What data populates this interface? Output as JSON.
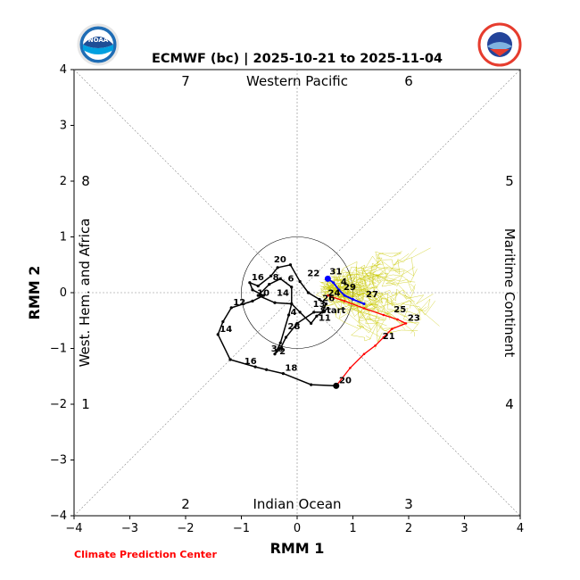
{
  "chart_data": {
    "type": "line",
    "title": "ECMWF (bc) | 2025-10-21 to 2025-11-04",
    "xlabel": "RMM 1",
    "ylabel": "RMM 2",
    "xlim": [
      -4,
      4
    ],
    "ylim": [
      -4,
      4
    ],
    "ticks": [
      "−4",
      "−3",
      "−2",
      "−1",
      "0",
      "1",
      "2",
      "3",
      "4"
    ],
    "credit": "Climate Prediction Center",
    "regions": {
      "top": "Western Pacific",
      "bottom": "Indian Ocean",
      "left": "West. Hem. and Africa",
      "right": "Maritime Continent"
    },
    "phases": [
      "1",
      "2",
      "3",
      "4",
      "5",
      "6",
      "7",
      "8"
    ],
    "colors": {
      "observed": "#000000",
      "forecast_week1": "#ff0000",
      "forecast_week2": "#0000ff",
      "ensemble": "#c8c800",
      "credit": "#ff0000"
    },
    "observed_series": {
      "points": [
        [
          0.7,
          -1.67
        ],
        [
          0.25,
          -1.65
        ],
        [
          -0.25,
          -1.45
        ],
        [
          -0.55,
          -1.38
        ],
        [
          -0.75,
          -1.33
        ],
        [
          -1.2,
          -1.2
        ],
        [
          -1.42,
          -0.75
        ],
        [
          -1.33,
          -0.52
        ],
        [
          -1.18,
          -0.27
        ],
        [
          -0.8,
          -0.15
        ],
        [
          -0.6,
          -0.05
        ],
        [
          -0.8,
          0.05
        ],
        [
          -0.85,
          0.18
        ],
        [
          -0.7,
          0.12
        ],
        [
          -0.47,
          0.3
        ],
        [
          -0.35,
          0.45
        ],
        [
          -0.12,
          0.5
        ],
        [
          0.05,
          0.2
        ],
        [
          0.2,
          0.0
        ],
        [
          0.4,
          -0.12
        ],
        [
          0.52,
          -0.2
        ],
        [
          0.45,
          -0.35
        ],
        [
          0.3,
          -0.35
        ],
        [
          0.0,
          -0.55
        ],
        [
          -0.2,
          -0.8
        ],
        [
          -0.3,
          -1.0
        ],
        [
          -0.4,
          -1.1
        ],
        [
          -0.3,
          -0.9
        ],
        [
          -0.15,
          -0.4
        ],
        [
          -0.1,
          -0.2
        ],
        [
          -0.1,
          0.1
        ],
        [
          -0.3,
          0.25
        ],
        [
          -0.5,
          0.15
        ],
        [
          -0.7,
          -0.05
        ],
        [
          -0.4,
          -0.18
        ],
        [
          -0.1,
          -0.2
        ],
        [
          0.05,
          -0.35
        ],
        [
          0.25,
          -0.55
        ],
        [
          0.35,
          -0.42
        ],
        [
          0.55,
          -0.28
        ]
      ],
      "labels": [
        {
          "text": "20",
          "x": 0.72,
          "y": -1.67
        },
        {
          "text": "18",
          "x": -0.25,
          "y": -1.45
        },
        {
          "text": "16",
          "x": -0.98,
          "y": -1.33
        },
        {
          "text": "14",
          "x": -1.42,
          "y": -0.75
        },
        {
          "text": "12",
          "x": -1.18,
          "y": -0.27
        },
        {
          "text": "10",
          "x": -0.75,
          "y": -0.1
        },
        {
          "text": "16",
          "x": -0.85,
          "y": 0.18
        },
        {
          "text": "8",
          "x": -0.47,
          "y": 0.18
        },
        {
          "text": "20",
          "x": -0.45,
          "y": 0.5
        },
        {
          "text": "6",
          "x": -0.2,
          "y": 0.15
        },
        {
          "text": "22",
          "x": 0.15,
          "y": 0.25
        },
        {
          "text": "14",
          "x": -0.4,
          "y": -0.1
        },
        {
          "text": "4",
          "x": -0.15,
          "y": -0.45
        },
        {
          "text": "28",
          "x": -0.2,
          "y": -0.7
        },
        {
          "text": "30",
          "x": -0.5,
          "y": -1.1
        },
        {
          "text": "2",
          "x": -0.35,
          "y": -1.15
        },
        {
          "text": "11",
          "x": 0.35,
          "y": -0.55
        },
        {
          "text": "13",
          "x": 0.25,
          "y": -0.3
        },
        {
          "text": "26",
          "x": 0.42,
          "y": -0.2
        },
        {
          "text": "24",
          "x": 0.52,
          "y": -0.1
        }
      ],
      "start_label": "Start",
      "start_x": 0.35,
      "start_y": -0.3
    },
    "forecast_red": {
      "points": [
        [
          0.55,
          -0.05
        ],
        [
          0.85,
          -0.15
        ],
        [
          1.2,
          -0.28
        ],
        [
          1.55,
          -0.4
        ],
        [
          1.8,
          -0.48
        ],
        [
          1.95,
          -0.55
        ],
        [
          1.7,
          -0.65
        ],
        [
          1.55,
          -0.8
        ],
        [
          1.4,
          -0.95
        ],
        [
          1.2,
          -1.1
        ],
        [
          0.95,
          -1.35
        ],
        [
          0.7,
          -1.67
        ]
      ],
      "labels": [
        {
          "text": "25",
          "x": 1.7,
          "y": -0.4
        },
        {
          "text": "23",
          "x": 1.95,
          "y": -0.55
        },
        {
          "text": "21",
          "x": 1.5,
          "y": -0.88
        }
      ]
    },
    "forecast_blue": {
      "points": [
        [
          0.55,
          0.25
        ],
        [
          0.65,
          0.18
        ],
        [
          0.75,
          0.05
        ],
        [
          0.85,
          -0.05
        ],
        [
          1.0,
          -0.12
        ],
        [
          1.2,
          -0.2
        ]
      ],
      "labels": [
        {
          "text": "31",
          "x": 0.55,
          "y": 0.28
        },
        {
          "text": "4",
          "x": 0.75,
          "y": 0.1
        },
        {
          "text": "29",
          "x": 0.8,
          "y": 0.0
        },
        {
          "text": "27",
          "x": 1.2,
          "y": -0.13
        }
      ]
    },
    "ensemble_count": 50
  }
}
